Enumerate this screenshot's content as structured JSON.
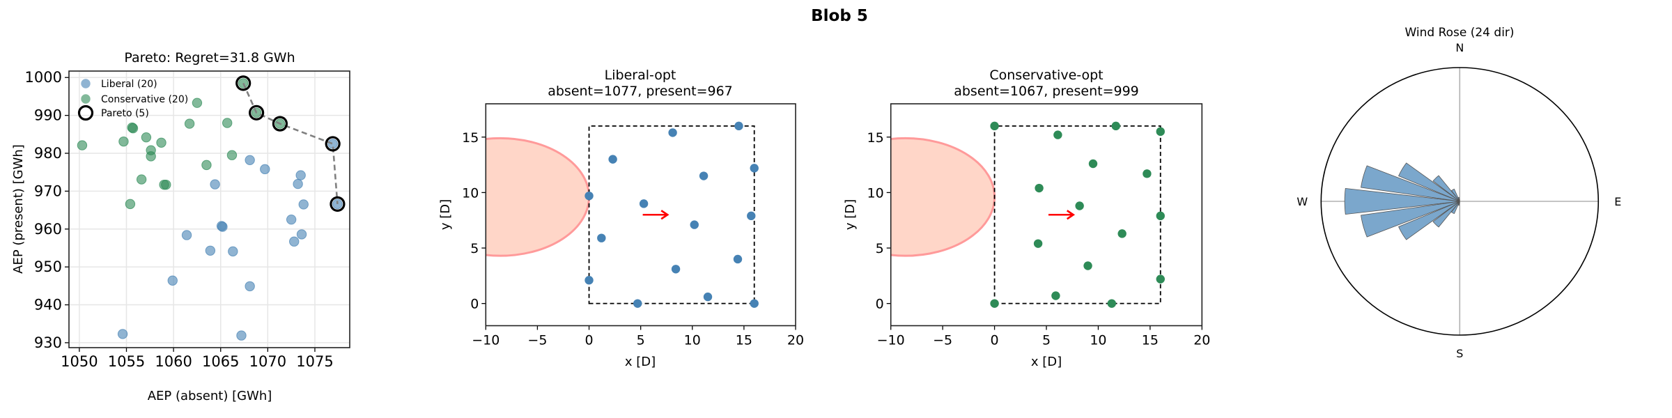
{
  "figure_title": "Blob 5",
  "colors": {
    "liberal": "#4682b4",
    "conservative": "#2e8b57",
    "pareto": "#000000",
    "blob_fill": "#ffd6c8",
    "blob_edge": "#ff9a9a",
    "wind_arrow": "#ff0000",
    "rose_bar": "#7ba7cc"
  },
  "chart_data": [
    {
      "type": "scatter",
      "title": "Pareto: Regret=31.8 GWh",
      "xlabel": "AEP (absent) [GWh]",
      "ylabel": "AEP (present) [GWh]",
      "xlim": [
        1048.9,
        1078.7
      ],
      "ylim": [
        928.7,
        1001.7
      ],
      "xticks": [
        1050,
        1055,
        1060,
        1065,
        1070,
        1075
      ],
      "yticks": [
        930,
        940,
        950,
        960,
        970,
        980,
        990,
        1000
      ],
      "grid": true,
      "legend": "top-left",
      "series": [
        {
          "name": "Liberal (20)",
          "points": [
            [
              1076.9,
              982.5
            ],
            [
              1077.4,
              966.6
            ],
            [
              1068.1,
              978.2
            ],
            [
              1069.7,
              975.8
            ],
            [
              1073.5,
              974.2
            ],
            [
              1073.2,
              971.9
            ],
            [
              1064.4,
              971.8
            ],
            [
              1073.8,
              966.5
            ],
            [
              1072.5,
              962.5
            ],
            [
              1065.1,
              960.8
            ],
            [
              1065.2,
              960.6
            ],
            [
              1073.6,
              958.6
            ],
            [
              1061.4,
              958.4
            ],
            [
              1072.8,
              956.7
            ],
            [
              1063.9,
              954.3
            ],
            [
              1066.3,
              954.1
            ],
            [
              1059.9,
              946.4
            ],
            [
              1068.1,
              944.9
            ],
            [
              1054.6,
              932.3
            ],
            [
              1067.2,
              931.9
            ]
          ]
        },
        {
          "name": "Conservative (20)",
          "points": [
            [
              1067.4,
              998.5
            ],
            [
              1068.8,
              990.7
            ],
            [
              1071.3,
              987.8
            ],
            [
              1062.5,
              993.3
            ],
            [
              1061.7,
              987.8
            ],
            [
              1065.7,
              988.0
            ],
            [
              1055.6,
              986.8
            ],
            [
              1055.7,
              986.6
            ],
            [
              1057.1,
              984.2
            ],
            [
              1054.7,
              983.1
            ],
            [
              1058.7,
              982.8
            ],
            [
              1050.3,
              982.1
            ],
            [
              1057.6,
              980.8
            ],
            [
              1057.6,
              979.2
            ],
            [
              1066.2,
              979.5
            ],
            [
              1063.5,
              976.9
            ],
            [
              1056.6,
              973.1
            ],
            [
              1059.0,
              971.7
            ],
            [
              1059.2,
              971.7
            ],
            [
              1055.4,
              966.6
            ]
          ]
        },
        {
          "name": "Pareto (5)",
          "points": [
            [
              1067.4,
              998.5
            ],
            [
              1068.8,
              990.7
            ],
            [
              1071.3,
              987.8
            ],
            [
              1076.9,
              982.5
            ],
            [
              1077.4,
              966.6
            ]
          ]
        }
      ]
    },
    {
      "type": "scatter",
      "title": "Liberal-opt",
      "subtitle": "absent=1077, present=967",
      "xlabel": "x [D]",
      "ylabel": "y [D]",
      "xlim": [
        -10,
        20
      ],
      "ylim": [
        -2,
        18
      ],
      "xticks": [
        -10,
        -5,
        0,
        5,
        10,
        15,
        20
      ],
      "yticks": [
        0,
        5,
        10,
        15
      ],
      "boundary": [
        [
          0,
          0
        ],
        [
          16,
          0
        ],
        [
          16,
          16
        ],
        [
          0,
          16
        ]
      ],
      "blob": {
        "cx": -8.6,
        "cy": 9.6,
        "rx": 8.6,
        "ry": 5.3
      },
      "wind_arrow": {
        "from": [
          5.2,
          8.0
        ],
        "to": [
          7.6,
          8.0
        ]
      },
      "turbines": [
        [
          14.5,
          16.0
        ],
        [
          8.1,
          15.4
        ],
        [
          2.3,
          13.0
        ],
        [
          16.0,
          12.2
        ],
        [
          11.1,
          11.5
        ],
        [
          0.0,
          9.7
        ],
        [
          5.3,
          9.0
        ],
        [
          15.7,
          7.9
        ],
        [
          10.2,
          7.1
        ],
        [
          1.2,
          5.9
        ],
        [
          14.4,
          4.0
        ],
        [
          8.4,
          3.1
        ],
        [
          0.0,
          2.1
        ],
        [
          11.5,
          0.6
        ],
        [
          4.7,
          0.0
        ],
        [
          16.0,
          0.0
        ]
      ]
    },
    {
      "type": "scatter",
      "title": "Conservative-opt",
      "subtitle": "absent=1067, present=999",
      "xlabel": "x [D]",
      "ylabel": "y [D]",
      "xlim": [
        -10,
        20
      ],
      "ylim": [
        -2,
        18
      ],
      "xticks": [
        -10,
        -5,
        0,
        5,
        10,
        15,
        20
      ],
      "yticks": [
        0,
        5,
        10,
        15
      ],
      "boundary": [
        [
          0,
          0
        ],
        [
          16,
          0
        ],
        [
          16,
          16
        ],
        [
          0,
          16
        ]
      ],
      "blob": {
        "cx": -8.6,
        "cy": 9.6,
        "rx": 8.6,
        "ry": 5.3
      },
      "wind_arrow": {
        "from": [
          5.2,
          8.0
        ],
        "to": [
          7.6,
          8.0
        ]
      },
      "turbines": [
        [
          0.0,
          16.0
        ],
        [
          11.7,
          16.0
        ],
        [
          16.0,
          15.5
        ],
        [
          6.1,
          15.2
        ],
        [
          9.5,
          12.6
        ],
        [
          14.7,
          11.7
        ],
        [
          4.3,
          10.4
        ],
        [
          8.2,
          8.8
        ],
        [
          16.0,
          7.9
        ],
        [
          12.3,
          6.3
        ],
        [
          4.2,
          5.4
        ],
        [
          9.0,
          3.4
        ],
        [
          16.0,
          2.2
        ],
        [
          5.9,
          0.7
        ],
        [
          0.0,
          0.0
        ],
        [
          11.3,
          0.0
        ]
      ]
    },
    {
      "type": "bar",
      "polar": true,
      "title": "Wind Rose (24 dir)",
      "compass_labels": [
        "N",
        "E",
        "S",
        "W"
      ],
      "directions_deg": [
        0,
        15,
        30,
        45,
        60,
        75,
        90,
        105,
        120,
        135,
        150,
        165,
        180,
        195,
        210,
        225,
        240,
        255,
        270,
        285,
        300,
        315,
        330,
        345
      ],
      "values": [
        0,
        0,
        0,
        0,
        0,
        0,
        0,
        0,
        0,
        0,
        0,
        0,
        0,
        0.03,
        0.1,
        0.245,
        0.48,
        0.72,
        0.83,
        0.72,
        0.48,
        0.245,
        0.1,
        0.03
      ],
      "rmax": 1.0
    }
  ]
}
